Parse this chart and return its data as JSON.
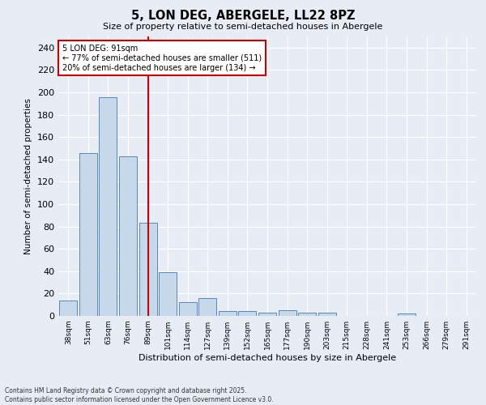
{
  "title": "5, LON DEG, ABERGELE, LL22 8PZ",
  "subtitle": "Size of property relative to semi-detached houses in Abergele",
  "xlabel": "Distribution of semi-detached houses by size in Abergele",
  "ylabel": "Number of semi-detached properties",
  "categories": [
    "38sqm",
    "51sqm",
    "63sqm",
    "76sqm",
    "89sqm",
    "101sqm",
    "114sqm",
    "127sqm",
    "139sqm",
    "152sqm",
    "165sqm",
    "177sqm",
    "190sqm",
    "203sqm",
    "215sqm",
    "228sqm",
    "241sqm",
    "253sqm",
    "266sqm",
    "279sqm",
    "291sqm"
  ],
  "values": [
    14,
    146,
    196,
    143,
    83,
    39,
    12,
    16,
    4,
    4,
    3,
    5,
    3,
    3,
    0,
    0,
    0,
    2,
    0,
    0,
    0
  ],
  "bar_color": "#c8d8eb",
  "bar_edge_color": "#5588bb",
  "red_line_x": 4.0,
  "annotation_title": "5 LON DEG: 91sqm",
  "annotation_line1": "← 77% of semi-detached houses are smaller (511)",
  "annotation_line2": "20% of semi-detached houses are larger (134) →",
  "annotation_box_color": "#ffffff",
  "annotation_box_edge_color": "#cc0000",
  "ylim": [
    0,
    250
  ],
  "yticks": [
    0,
    20,
    40,
    60,
    80,
    100,
    120,
    140,
    160,
    180,
    200,
    220,
    240
  ],
  "background_color": "#e8edf5",
  "plot_bg_color": "#e8edf5",
  "grid_color": "#ffffff",
  "footer_line1": "Contains HM Land Registry data © Crown copyright and database right 2025.",
  "footer_line2": "Contains public sector information licensed under the Open Government Licence v3.0."
}
